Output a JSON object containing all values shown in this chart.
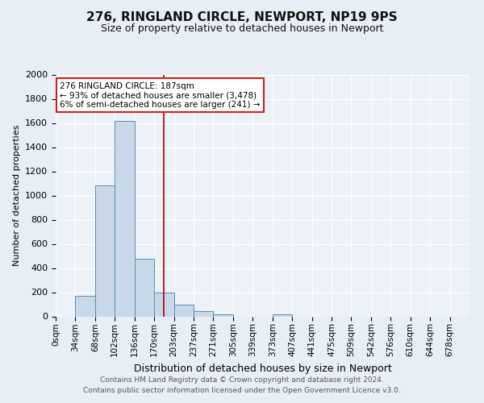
{
  "title1": "276, RINGLAND CIRCLE, NEWPORT, NP19 9PS",
  "title2": "Size of property relative to detached houses in Newport",
  "xlabel": "Distribution of detached houses by size in Newport",
  "ylabel": "Number of detached properties",
  "footnote1": "Contains HM Land Registry data © Crown copyright and database right 2024.",
  "footnote2": "Contains public sector information licensed under the Open Government Licence v3.0.",
  "bar_labels": [
    "0sqm",
    "34sqm",
    "68sqm",
    "102sqm",
    "136sqm",
    "170sqm",
    "203sqm",
    "237sqm",
    "271sqm",
    "305sqm",
    "339sqm",
    "373sqm",
    "407sqm",
    "441sqm",
    "475sqm",
    "509sqm",
    "542sqm",
    "576sqm",
    "610sqm",
    "644sqm",
    "678sqm"
  ],
  "bar_values": [
    0,
    170,
    1085,
    1620,
    480,
    200,
    100,
    42,
    18,
    0,
    0,
    20,
    0,
    0,
    0,
    0,
    0,
    0,
    0,
    0,
    0
  ],
  "bar_color": "#c8d8e8",
  "bar_edge_color": "#5a8db0",
  "ylim": [
    0,
    2000
  ],
  "yticks": [
    0,
    200,
    400,
    600,
    800,
    1000,
    1200,
    1400,
    1600,
    1800,
    2000
  ],
  "vline_color": "#aa0000",
  "annotation_line1": "276 RINGLAND CIRCLE: 187sqm",
  "annotation_line2": "← 93% of detached houses are smaller (3,478)",
  "annotation_line3": "6% of semi-detached houses are larger (241) →",
  "annotation_box_color": "#ffffff",
  "annotation_box_edge_color": "#cc2222",
  "bg_color": "#e8eef5",
  "plot_bg_color": "#edf2f8",
  "grid_color": "#ffffff",
  "title_fontsize": 11,
  "subtitle_fontsize": 9,
  "ylabel_fontsize": 8,
  "xlabel_fontsize": 9,
  "tick_fontsize": 8,
  "xtick_fontsize": 7.5
}
